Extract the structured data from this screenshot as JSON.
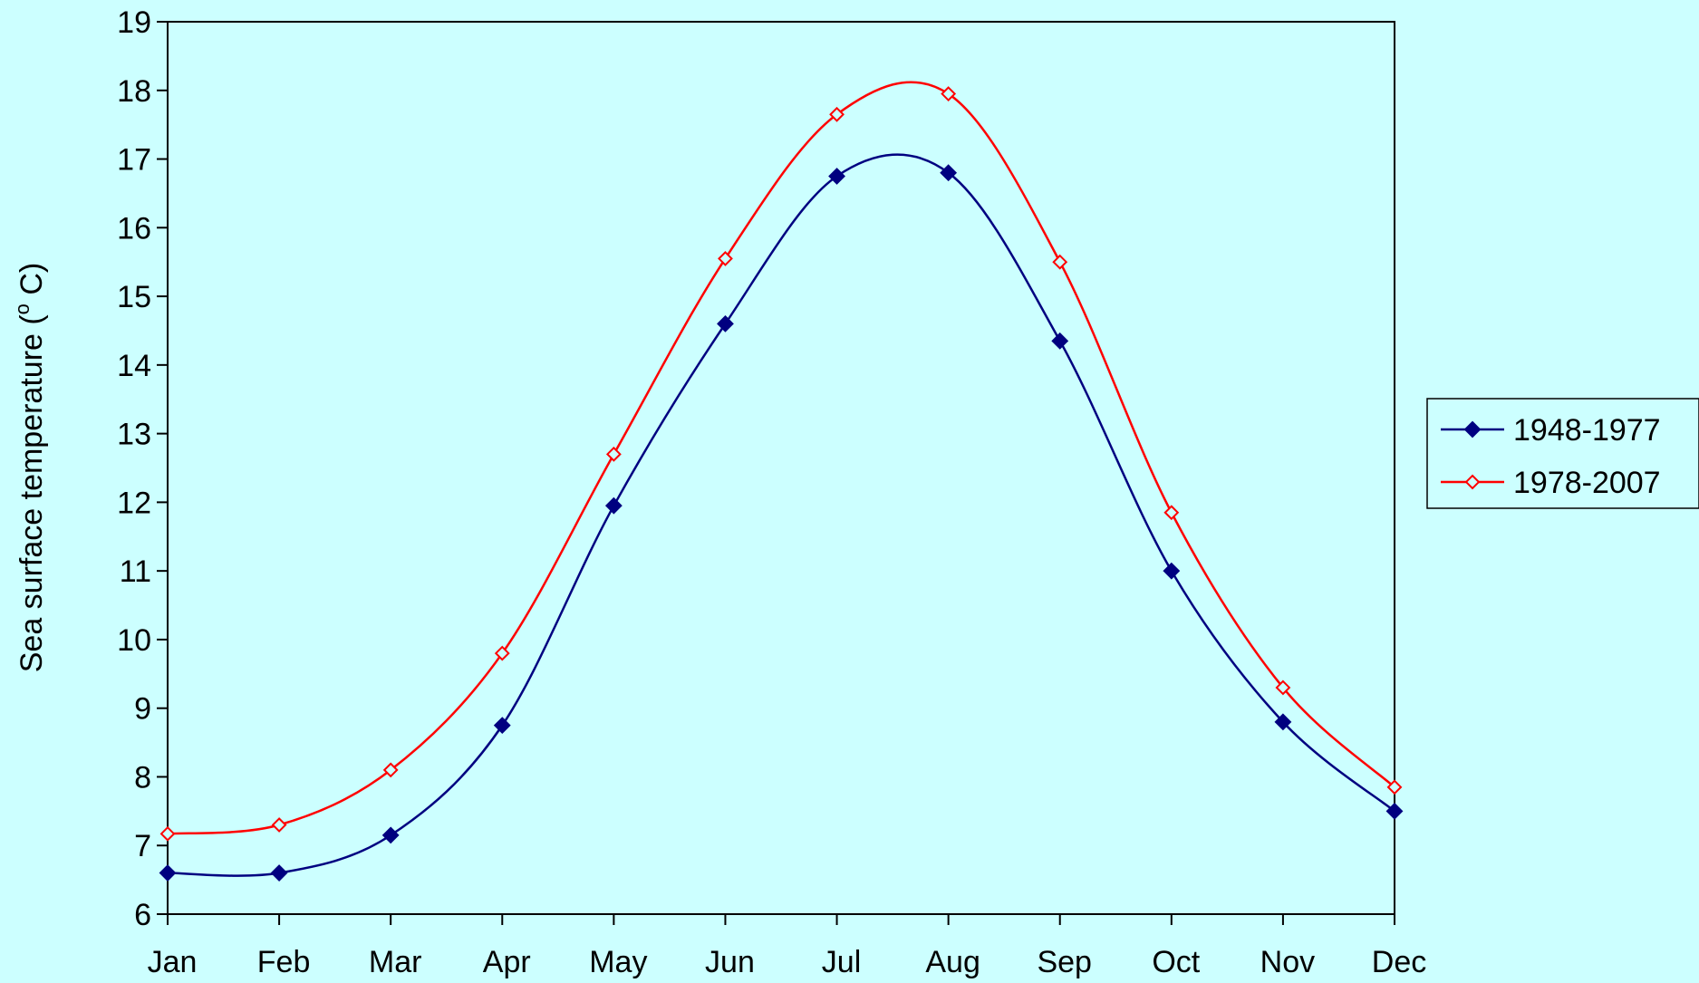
{
  "chart_data": {
    "type": "line",
    "title": "",
    "xlabel": "",
    "ylabel": "Sea surface temperature (",
    "ylabel_super": "o",
    "ylabel_end": " C)",
    "categories": [
      "Jan",
      "Feb",
      "Mar",
      "Apr",
      "May",
      "Jun",
      "Jul",
      "Aug",
      "Sep",
      "Oct",
      "Nov",
      "Dec"
    ],
    "ylim": [
      6,
      19
    ],
    "yticks": [
      6,
      7,
      8,
      9,
      10,
      11,
      12,
      13,
      14,
      15,
      16,
      17,
      18,
      19
    ],
    "grid": false,
    "legend_position": "right",
    "series": [
      {
        "name": "1948-1977",
        "color": "#000080",
        "marker": "filled-diamond",
        "values": [
          6.6,
          6.6,
          7.15,
          8.75,
          11.95,
          14.6,
          16.75,
          16.8,
          14.35,
          11.0,
          8.8,
          7.5
        ]
      },
      {
        "name": "1978-2007",
        "color": "#ff0000",
        "marker": "open-diamond",
        "values": [
          7.17,
          7.3,
          8.1,
          9.8,
          12.7,
          15.55,
          17.65,
          17.95,
          15.5,
          11.85,
          9.3,
          7.85
        ]
      }
    ]
  },
  "colors": {
    "background": "#ccffff",
    "plot_border": "#000000"
  }
}
